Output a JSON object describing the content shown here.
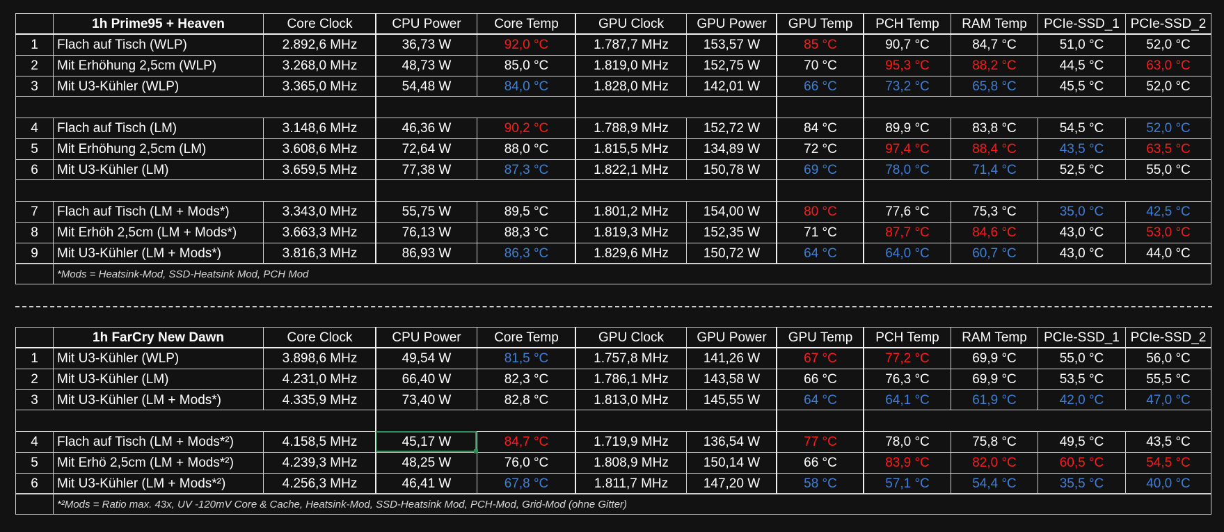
{
  "tables": [
    {
      "title": "1h Prime95 + Heaven",
      "headers": [
        "Core Clock",
        "CPU Power",
        "Core Temp",
        "GPU Clock",
        "GPU Power",
        "GPU Temp",
        "PCH Temp",
        "RAM Temp",
        "PCIe-SSD_1",
        "PCIe-SSD_2"
      ],
      "groups": [
        [
          {
            "num": "1",
            "name": "Flach auf Tisch (WLP)",
            "values": [
              "2.892,6 MHz",
              "36,73 W",
              "92,0 °C",
              "1.787,7 MHz",
              "153,57 W",
              "85 °C",
              "90,7 °C",
              "84,7 °C",
              "51,0 °C",
              "52,0 °C"
            ],
            "colors": [
              "",
              "",
              "red",
              "",
              "",
              "red",
              "",
              "",
              "",
              ""
            ]
          },
          {
            "num": "2",
            "name": "Mit Erhöhung 2,5cm (WLP)",
            "values": [
              "3.268,0 MHz",
              "48,73 W",
              "85,0 °C",
              "1.819,0 MHz",
              "152,75 W",
              "70 °C",
              "95,3 °C",
              "88,2 °C",
              "44,5 °C",
              "63,0 °C"
            ],
            "colors": [
              "",
              "",
              "",
              "",
              "",
              "",
              "red",
              "red",
              "",
              "red"
            ]
          },
          {
            "num": "3",
            "name": "Mit U3-Kühler (WLP)",
            "values": [
              "3.365,0 MHz",
              "54,48 W",
              "84,0 °C",
              "1.828,0 MHz",
              "142,01 W",
              "66 °C",
              "73,2 °C",
              "65,8 °C",
              "45,5 °C",
              "52,0 °C"
            ],
            "colors": [
              "",
              "",
              "blue",
              "",
              "",
              "blue",
              "blue",
              "blue",
              "",
              ""
            ]
          }
        ],
        [
          {
            "num": "4",
            "name": "Flach auf Tisch (LM)",
            "values": [
              "3.148,6 MHz",
              "46,36 W",
              "90,2 °C",
              "1.788,9 MHz",
              "152,72 W",
              "84 °C",
              "89,9 °C",
              "83,8 °C",
              "54,5 °C",
              "52,0 °C"
            ],
            "colors": [
              "",
              "",
              "red",
              "",
              "",
              "",
              "",
              "",
              "",
              "blue"
            ]
          },
          {
            "num": "5",
            "name": "Mit Erhöhung 2,5cm (LM)",
            "values": [
              "3.608,6 MHz",
              "72,64 W",
              "88,0 °C",
              "1.815,5 MHz",
              "134,89 W",
              "72 °C",
              "97,4 °C",
              "88,4 °C",
              "43,5 °C",
              "63,5 °C"
            ],
            "colors": [
              "",
              "",
              "",
              "",
              "",
              "",
              "red",
              "red",
              "blue",
              "red"
            ]
          },
          {
            "num": "6",
            "name": "Mit U3-Kühler (LM)",
            "values": [
              "3.659,5 MHz",
              "77,38 W",
              "87,3 °C",
              "1.822,1 MHz",
              "150,78 W",
              "69 °C",
              "78,0 °C",
              "71,4 °C",
              "52,5 °C",
              "55,0 °C"
            ],
            "colors": [
              "",
              "",
              "blue",
              "",
              "",
              "blue",
              "blue",
              "blue",
              "",
              ""
            ]
          }
        ],
        [
          {
            "num": "7",
            "name": "Flach auf Tisch (LM + Mods*)",
            "values": [
              "3.343,0 MHz",
              "55,75 W",
              "89,5 °C",
              "1.801,2 MHz",
              "154,00 W",
              "80 °C",
              "77,6 °C",
              "75,3 °C",
              "35,0 °C",
              "42,5 °C"
            ],
            "colors": [
              "",
              "",
              "",
              "",
              "",
              "red",
              "",
              "",
              "blue",
              "blue"
            ]
          },
          {
            "num": "8",
            "name": "Mit Erhöh 2,5cm (LM + Mods*)",
            "values": [
              "3.663,3 MHz",
              "76,13 W",
              "88,3 °C",
              "1.819,3 MHz",
              "152,35 W",
              "71 °C",
              "87,7 °C",
              "84,6 °C",
              "43,0 °C",
              "53,0 °C"
            ],
            "colors": [
              "",
              "",
              "",
              "",
              "",
              "",
              "red",
              "red",
              "",
              "red"
            ]
          },
          {
            "num": "9",
            "name": "Mit U3-Kühler  (LM + Mods*)",
            "values": [
              "3.816,3 MHz",
              "86,93 W",
              "86,3 °C",
              "1.829,6 MHz",
              "150,72 W",
              "64 °C",
              "64,0 °C",
              "60,7 °C",
              "43,0 °C",
              "44,0 °C"
            ],
            "colors": [
              "",
              "",
              "blue",
              "",
              "",
              "blue",
              "blue",
              "blue",
              "",
              ""
            ]
          }
        ]
      ],
      "note": "*Mods = Heatsink-Mod, SSD-Heatsink Mod, PCH Mod"
    },
    {
      "title": "1h FarCry New Dawn",
      "headers": [
        "Core Clock",
        "CPU Power",
        "Core Temp",
        "GPU Clock",
        "GPU Power",
        "GPU Temp",
        "PCH Temp",
        "RAM Temp",
        "PCIe-SSD_1",
        "PCIe-SSD_2"
      ],
      "groups": [
        [
          {
            "num": "1",
            "name": "Mit U3-Kühler (WLP)",
            "values": [
              "3.898,6 MHz",
              "49,54 W",
              "81,5 °C",
              "1.757,8 MHz",
              "141,26 W",
              "67 °C",
              "77,2 °C",
              "69,9 °C",
              "55,0 °C",
              "56,0 °C"
            ],
            "colors": [
              "",
              "",
              "blue",
              "",
              "",
              "red",
              "red",
              "",
              "",
              ""
            ]
          },
          {
            "num": "2",
            "name": "Mit U3-Kühler (LM)",
            "values": [
              "4.231,0 MHz",
              "66,40 W",
              "82,3 °C",
              "1.786,1 MHz",
              "143,58 W",
              "66 °C",
              "76,3 °C",
              "69,9 °C",
              "53,5 °C",
              "55,5 °C"
            ],
            "colors": [
              "",
              "",
              "",
              "",
              "",
              "",
              "",
              "",
              "",
              ""
            ]
          },
          {
            "num": "3",
            "name": "Mit U3-Kühler (LM + Mods*)",
            "values": [
              "4.335,9 MHz",
              "73,40 W",
              "82,8 °C",
              "1.813,0 MHz",
              "145,55 W",
              "64 °C",
              "64,1 °C",
              "61,9 °C",
              "42,0 °C",
              "47,0 °C"
            ],
            "colors": [
              "",
              "",
              "",
              "",
              "",
              "blue",
              "blue",
              "blue",
              "blue",
              "blue"
            ]
          }
        ],
        [
          {
            "num": "4",
            "name": "Flach auf Tisch (LM + Mods*²)",
            "values": [
              "4.158,5 MHz",
              "45,17 W",
              "84,7 °C",
              "1.719,9 MHz",
              "136,54 W",
              "77 °C",
              "78,0 °C",
              "75,8 °C",
              "49,5 °C",
              "43,5 °C"
            ],
            "colors": [
              "",
              "",
              "red",
              "",
              "",
              "red",
              "",
              "",
              "",
              ""
            ]
          },
          {
            "num": "5",
            "name": "Mit Erhö 2,5cm (LM + Mods*²)",
            "values": [
              "4.239,3 MHz",
              "48,25 W",
              "76,0 °C",
              "1.808,9 MHz",
              "150,14 W",
              "66 °C",
              "83,9 °C",
              "82,0 °C",
              "60,5 °C",
              "54,5 °C"
            ],
            "colors": [
              "",
              "",
              "",
              "",
              "",
              "",
              "red",
              "red",
              "red",
              "red"
            ]
          },
          {
            "num": "6",
            "name": "Mit U3-Kühler (LM + Mods*²)",
            "values": [
              "4.256,3 MHz",
              "46,41 W",
              "67,8 °C",
              "1.811,7 MHz",
              "147,20 W",
              "58 °C",
              "57,1 °C",
              "54,4 °C",
              "35,5 °C",
              "40,0 °C"
            ],
            "colors": [
              "",
              "",
              "blue",
              "",
              "",
              "blue",
              "blue",
              "blue",
              "blue",
              "blue"
            ]
          }
        ]
      ],
      "note": "*²Mods = Ratio max. 43x,  UV -120mV Core & Cache, Heatsink-Mod, SSD-Heatsink Mod, PCH-Mod, Grid-Mod (ohne Gitter)"
    }
  ]
}
